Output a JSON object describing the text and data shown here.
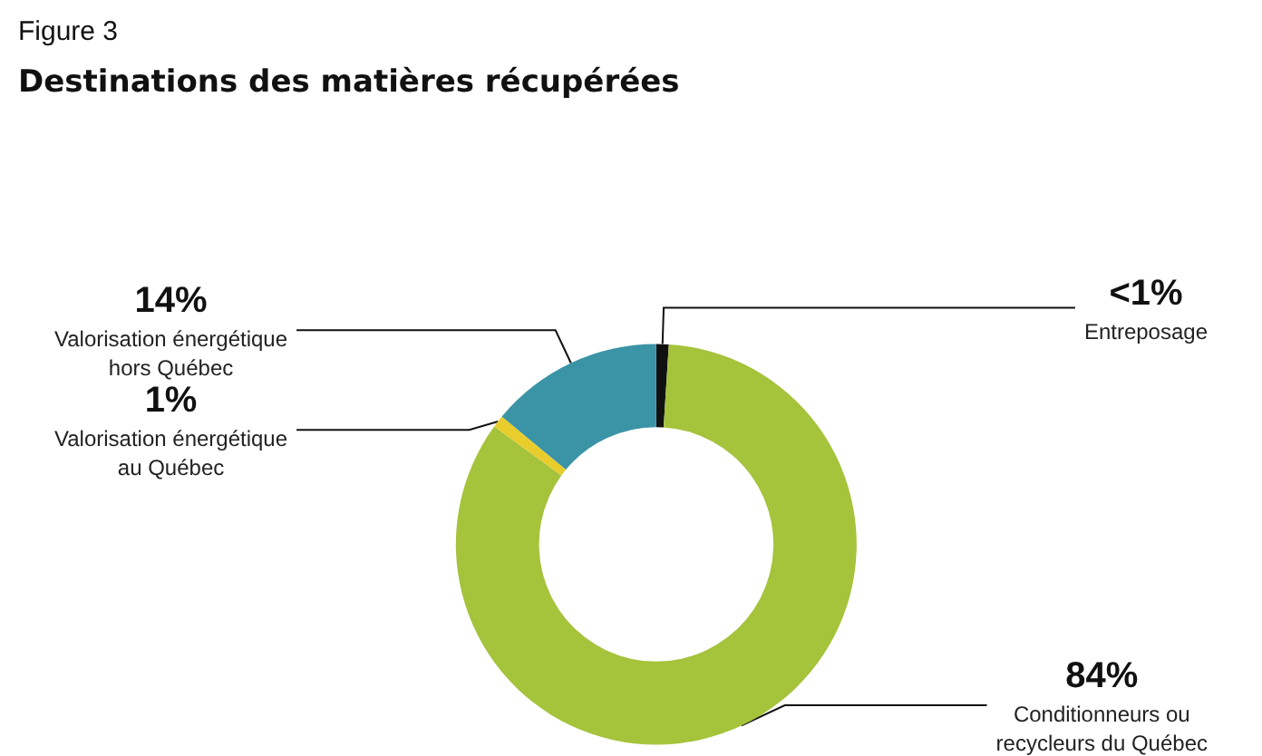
{
  "chart_data": {
    "type": "donut",
    "title": "Figure 3",
    "subtitle": "Destinations des matières récupérées",
    "categories": [
      "Entreposage",
      "Conditionneurs ou\nrecycleurs du Québec",
      "Valorisation énergétique\nau Québec",
      "Valorisation énergétique\nhors Québec"
    ],
    "values": [
      1,
      84,
      1,
      14
    ],
    "value_labels": [
      "<1%",
      "84%",
      "1%",
      "14%"
    ],
    "colors": [
      "#111111",
      "#a5c33b",
      "#e8cd2c",
      "#3b93a6"
    ],
    "legend": false
  }
}
